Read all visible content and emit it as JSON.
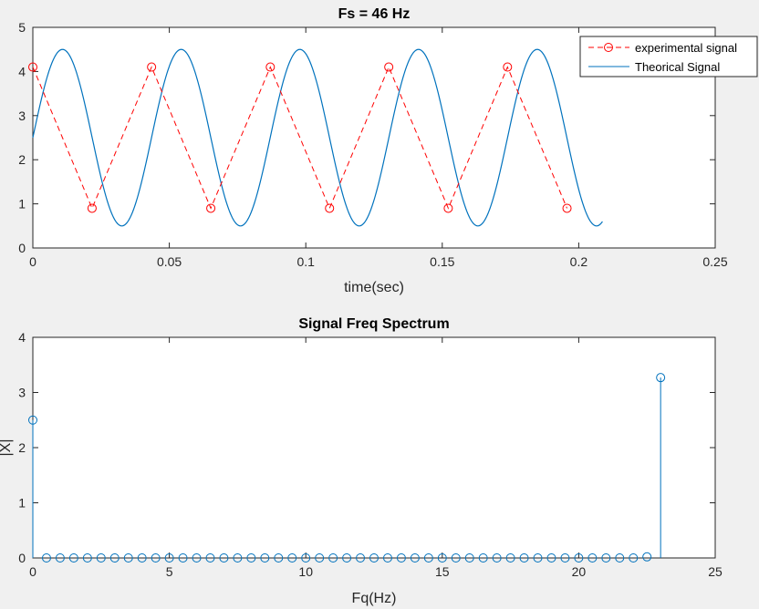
{
  "colors": {
    "background": "#f0f0f0",
    "experimental": "#ff0000",
    "theoretical": "#0072bd",
    "stem": "#0072bd"
  },
  "chart_data": [
    {
      "type": "line",
      "title": "Fs = 46 Hz",
      "xlabel": "time(sec)",
      "ylabel": "",
      "xlim": [
        0,
        0.25
      ],
      "ylim": [
        0,
        5
      ],
      "xticks": [
        0,
        0.05,
        0.1,
        0.15,
        0.2,
        0.25
      ],
      "xtick_labels": [
        "0",
        "0.05",
        "0.1",
        "0.15",
        "0.2",
        "0.25"
      ],
      "yticks": [
        0,
        1,
        2,
        3,
        4,
        5
      ],
      "ytick_labels": [
        "0",
        "1",
        "2",
        "3",
        "4",
        "5"
      ],
      "legend_position": "top-right",
      "series": [
        {
          "name": "experimental signal",
          "style": "dashed-circle-markers",
          "color": "#ff0000",
          "x": [
            0,
            0.0217,
            0.0435,
            0.0652,
            0.087,
            0.1087,
            0.1304,
            0.1522,
            0.1739,
            0.1957
          ],
          "y": [
            4.1,
            0.9,
            4.1,
            0.9,
            4.1,
            0.9,
            4.1,
            0.9,
            4.1,
            0.9
          ]
        },
        {
          "name": "Theorical Signal",
          "style": "solid",
          "color": "#0072bd",
          "function": {
            "offset": 2.5,
            "amplitude": 2.0,
            "frequency_hz": 23,
            "phase_rad": 0,
            "x_start": 0,
            "x_end": 0.2087
          }
        }
      ]
    },
    {
      "type": "stem",
      "title": "Signal Freq Spectrum",
      "xlabel": "Fq(Hz)",
      "ylabel": "|X|",
      "xlim": [
        0,
        25
      ],
      "ylim": [
        0,
        4
      ],
      "xticks": [
        0,
        5,
        10,
        15,
        20,
        25
      ],
      "xtick_labels": [
        "0",
        "5",
        "10",
        "15",
        "20",
        "25"
      ],
      "yticks": [
        0,
        1,
        2,
        3,
        4
      ],
      "ytick_labels": [
        "0",
        "1",
        "2",
        "3",
        "4"
      ],
      "series": [
        {
          "name": "",
          "color": "#0072bd",
          "x": [
            0,
            0.5,
            1,
            1.5,
            2,
            2.5,
            3,
            3.5,
            4,
            4.5,
            5,
            5.5,
            6,
            6.5,
            7,
            7.5,
            8,
            8.5,
            9,
            9.5,
            10,
            10.5,
            11,
            11.5,
            12,
            12.5,
            13,
            13.5,
            14,
            14.5,
            15,
            15.5,
            16,
            16.5,
            17,
            17.5,
            18,
            18.5,
            19,
            19.5,
            20,
            20.5,
            21,
            21.5,
            22,
            22.5,
            23
          ],
          "y": [
            2.5,
            0,
            0,
            0,
            0,
            0,
            0,
            0,
            0,
            0,
            0,
            0,
            0,
            0,
            0,
            0,
            0,
            0,
            0,
            0,
            0,
            0,
            0,
            0,
            0,
            0,
            0,
            0,
            0,
            0,
            0,
            0,
            0,
            0,
            0,
            0,
            0,
            0,
            0,
            0,
            0,
            0,
            0,
            0,
            0,
            0.02,
            3.27
          ]
        }
      ]
    }
  ]
}
